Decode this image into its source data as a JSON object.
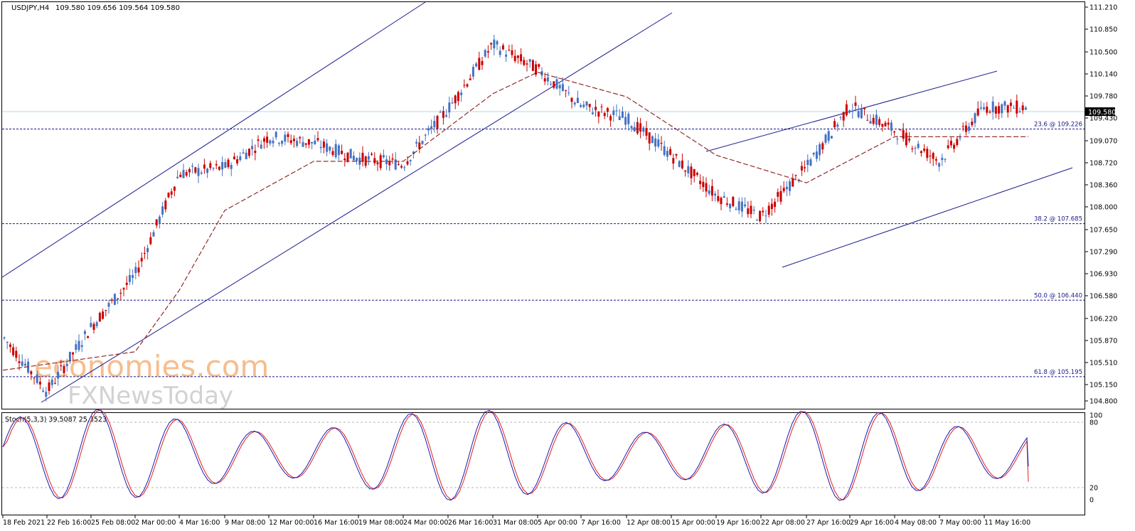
{
  "header": {
    "symbol": "USDJPY,H4",
    "ohlc": "109.580 109.656 109.564 109.580"
  },
  "watermark": {
    "line1": "economies.com",
    "line2": "FXNewsToday"
  },
  "price_axis": {
    "ticks": [
      "111.210",
      "110.850",
      "110.500",
      "110.140",
      "109.780",
      "109.430",
      "109.070",
      "108.720",
      "108.360",
      "108.000",
      "107.650",
      "107.290",
      "106.930",
      "106.580",
      "106.220",
      "105.870",
      "105.510",
      "105.150",
      "104.800"
    ],
    "current_price": "109.580"
  },
  "stoch_panel": {
    "label": "Stoch(5,3,3) 39.5087 25.3523",
    "ticks": [
      "100",
      "80",
      "20",
      "0"
    ]
  },
  "time_axis": {
    "labels": [
      "18 Feb 2021",
      "22 Feb 16:00",
      "25 Feb 08:00",
      "2 Mar 00:00",
      "4 Mar 16:00",
      "9 Mar 08:00",
      "12 Mar 00:00",
      "16 Mar 16:00",
      "19 Mar 08:00",
      "24 Mar 00:00",
      "26 Mar 16:00",
      "31 Mar 08:00",
      "5 Apr 00:00",
      "7 Apr 16:00",
      "12 Apr 08:00",
      "15 Apr 00:00",
      "19 Apr 16:00",
      "22 Apr 08:00",
      "27 Apr 16:00",
      "29 Apr 16:00",
      "4 May 08:00",
      "7 May 00:00",
      "11 May 16:00"
    ]
  },
  "fib_levels": [
    {
      "label": "23.6 @ 109.226",
      "price": 109.226
    },
    {
      "label": "38.2 @ 107.685",
      "price": 107.685
    },
    {
      "label": "50.0 @ 106.440",
      "price": 106.44
    },
    {
      "label": "61.8 @ 105.195",
      "price": 105.195
    }
  ],
  "colors": {
    "bull": "#4472c4",
    "bear": "#cc0000",
    "trendline": "#1a1a8c",
    "fib": "#1a1a8c",
    "ma": "#8b1a1a",
    "price_line": "#a8dcec",
    "stoch_main": "#1a1ab0",
    "stoch_signal": "#e02020",
    "watermark_orange": "#f6b27a",
    "watermark_gray": "#c8c8c8"
  },
  "chart_data": {
    "type": "candlestick",
    "title": "USDJPY,H4",
    "ylim": [
      104.8,
      111.21
    ],
    "close_path": [
      {
        "date": "18 Feb 2021",
        "close": 105.85
      },
      {
        "date": "22 Feb 16:00",
        "close": 104.95
      },
      {
        "date": "25 Feb 08:00",
        "close": 106.0
      },
      {
        "date": "2 Mar 00:00",
        "close": 106.85
      },
      {
        "date": "4 Mar 16:00",
        "close": 108.5
      },
      {
        "date": "9 Mar 08:00",
        "close": 108.6
      },
      {
        "date": "12 Mar 00:00",
        "close": 109.1
      },
      {
        "date": "16 Mar 16:00",
        "close": 109.0
      },
      {
        "date": "19 Mar 08:00",
        "close": 108.75
      },
      {
        "date": "24 Mar 00:00",
        "close": 108.65
      },
      {
        "date": "26 Mar 16:00",
        "close": 109.55
      },
      {
        "date": "31 Mar 08:00",
        "close": 110.6
      },
      {
        "date": "5 Apr 00:00",
        "close": 110.2
      },
      {
        "date": "7 Apr 16:00",
        "close": 109.6
      },
      {
        "date": "12 Apr 08:00",
        "close": 109.4
      },
      {
        "date": "15 Apr 00:00",
        "close": 108.8
      },
      {
        "date": "19 Apr 16:00",
        "close": 108.15
      },
      {
        "date": "22 Apr 08:00",
        "close": 107.8
      },
      {
        "date": "27 Apr 16:00",
        "close": 108.6
      },
      {
        "date": "29 Apr 16:00",
        "close": 109.6
      },
      {
        "date": "4 May 08:00",
        "close": 109.2
      },
      {
        "date": "7 May 00:00",
        "close": 108.7
      },
      {
        "date": "11 May 16:00",
        "close": 109.58
      }
    ],
    "moving_average_path": [
      {
        "date": "18 Feb 2021",
        "value": 105.3
      },
      {
        "date": "2 Mar 00:00",
        "value": 105.6
      },
      {
        "date": "4 Mar 16:00",
        "value": 106.6
      },
      {
        "date": "9 Mar 08:00",
        "value": 107.9
      },
      {
        "date": "16 Mar 16:00",
        "value": 108.7
      },
      {
        "date": "24 Mar 00:00",
        "value": 108.7
      },
      {
        "date": "31 Mar 08:00",
        "value": 109.8
      },
      {
        "date": "5 Apr 00:00",
        "value": 110.15
      },
      {
        "date": "12 Apr 08:00",
        "value": 109.75
      },
      {
        "date": "19 Apr 16:00",
        "value": 108.8
      },
      {
        "date": "27 Apr 16:00",
        "value": 108.35
      },
      {
        "date": "4 May 08:00",
        "value": 109.1
      },
      {
        "date": "11 May 16:00",
        "value": 109.1
      }
    ],
    "stochastic": {
      "main": 39.5087,
      "signal": 25.3523,
      "levels": [
        20,
        80
      ]
    }
  }
}
